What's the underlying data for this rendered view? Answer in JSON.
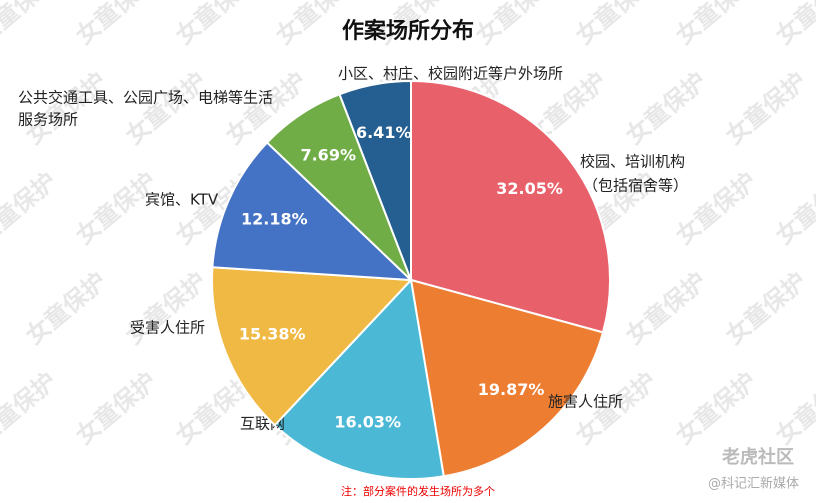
{
  "chart_data": {
    "type": "pie",
    "title": "作案场所分布",
    "categories": [
      [
        "校园、培训机构",
        "（包括宿舍等）"
      ],
      [
        "施害人住所"
      ],
      [
        "互联网"
      ],
      [
        "受害人住所"
      ],
      [
        "宾馆、KTV"
      ],
      [
        "公共交通工具、公园广场、电梯等生活",
        "服务场所"
      ],
      [
        "小区、村庄、校园附近等户外场所"
      ]
    ],
    "values": [
      32.05,
      19.87,
      16.03,
      15.38,
      12.18,
      7.69,
      6.41
    ],
    "value_labels": [
      "32.05%",
      "19.87%",
      "16.03%",
      "15.38%",
      "12.18%",
      "7.69%",
      "6.41%"
    ],
    "colors": [
      "#e8606a",
      "#ed7d31",
      "#4bb8d6",
      "#f0b944",
      "#4472c4",
      "#70ad47",
      "#255e91"
    ],
    "note": "注：部分案件的发生场所为多个"
  },
  "watermark": "女童保护",
  "logo": "老虎社区",
  "source": "@科记汇新媒体"
}
